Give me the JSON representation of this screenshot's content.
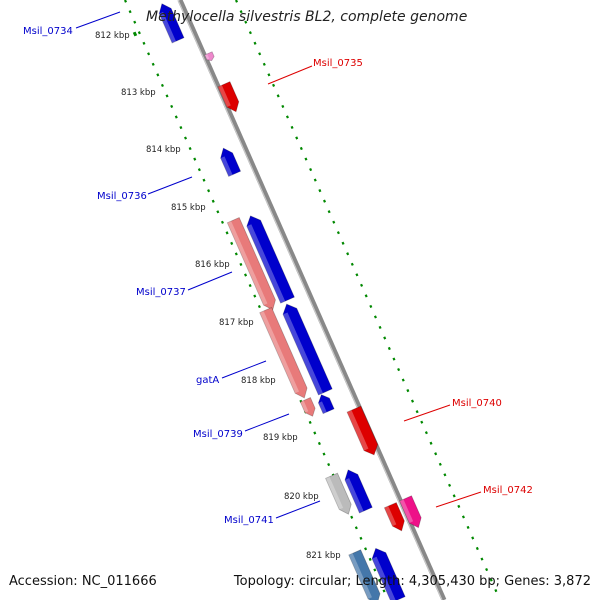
{
  "title": "Methylocella silvestris BL2, complete genome",
  "footer": {
    "accession": "Accession: NC_011666",
    "summary": "Topology: circular; Length: 4,305,430 bp; Genes: 3,872"
  },
  "kbp_labels": [
    "812 kbp",
    "813 kbp",
    "814 kbp",
    "815 kbp",
    "816 kbp",
    "817 kbp",
    "818 kbp",
    "819 kbp",
    "820 kbp",
    "821 kbp"
  ],
  "gene_labels": [
    {
      "text": "Msil_0734",
      "strand": "forward"
    },
    {
      "text": "Msil_0735",
      "strand": "reverse"
    },
    {
      "text": "Msil_0736",
      "strand": "forward"
    },
    {
      "text": "Msil_0737",
      "strand": "forward"
    },
    {
      "text": "gatA",
      "strand": "forward"
    },
    {
      "text": "Msil_0739",
      "strand": "forward"
    },
    {
      "text": "Msil_0740",
      "strand": "reverse"
    },
    {
      "text": "Msil_0741",
      "strand": "forward"
    },
    {
      "text": "Msil_0742",
      "strand": "reverse"
    }
  ],
  "colors": {
    "forward": "#0000cc",
    "reverse": "#dd0000",
    "rna": "#e87a7a",
    "pseudo": "#bbbbbb",
    "other_pink": "#ee1188",
    "steel": "#4477aa",
    "backbone": "#888888",
    "ticks": "#008800"
  }
}
